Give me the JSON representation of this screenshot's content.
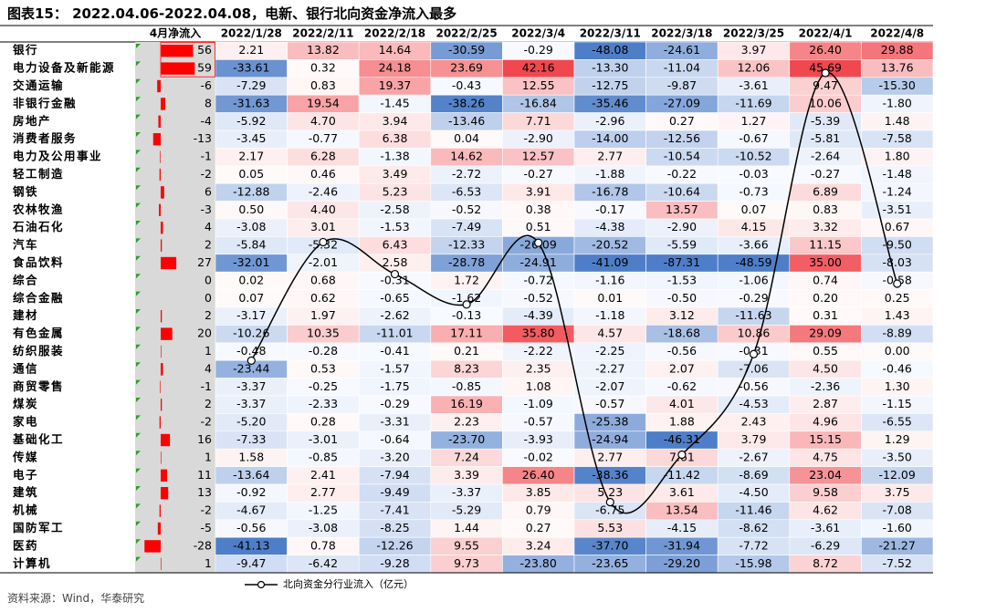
{
  "title": "图表15： 2022.04.06-2022.04.08，电新、银行北向资金净流入最多",
  "source": "资料来源：Wind，华泰研究",
  "colors": {
    "positive": "#f04a4f",
    "negative": "#4f7fc8",
    "bar": "#ff0000",
    "highlight_border": "#ff3030"
  },
  "chart_data": {
    "type": "table",
    "april_header": "4月净流入",
    "dates": [
      "2022/1/28",
      "2022/2/11",
      "2022/2/18",
      "2022/2/25",
      "2022/3/4",
      "2022/3/11",
      "2022/3/18",
      "2022/3/25",
      "2022/4/1",
      "2022/4/8"
    ],
    "sectors": [
      {
        "name": "银行",
        "april": 56,
        "values": [
          2.21,
          13.82,
          14.64,
          -30.59,
          -0.29,
          -48.08,
          -24.61,
          3.97,
          26.4,
          29.88
        ]
      },
      {
        "name": "电力设备及新能源",
        "april": 59,
        "values": [
          -33.61,
          0.32,
          24.18,
          23.69,
          42.16,
          -13.3,
          -11.04,
          12.06,
          45.69,
          13.76
        ]
      },
      {
        "name": "交通运输",
        "april": -6,
        "values": [
          -7.29,
          0.83,
          19.37,
          -0.43,
          12.55,
          -12.75,
          -9.87,
          -3.61,
          9.47,
          -15.3
        ]
      },
      {
        "name": "非银行金融",
        "april": 8,
        "values": [
          -31.63,
          19.54,
          -1.45,
          -38.26,
          -16.84,
          -35.46,
          -27.09,
          -11.69,
          10.06,
          -1.8
        ]
      },
      {
        "name": "房地产",
        "april": -4,
        "values": [
          -5.92,
          4.7,
          3.94,
          -13.46,
          7.71,
          -2.96,
          0.27,
          1.27,
          -5.39,
          1.48
        ]
      },
      {
        "name": "消费者服务",
        "april": -13,
        "values": [
          -3.45,
          -0.77,
          6.38,
          0.04,
          -2.9,
          -14.0,
          -12.56,
          -0.67,
          -5.81,
          -7.58
        ]
      },
      {
        "name": "电力及公用事业",
        "april": -1,
        "values": [
          2.17,
          6.28,
          -1.38,
          14.62,
          12.57,
          2.77,
          -10.54,
          -10.52,
          -2.64,
          1.8
        ]
      },
      {
        "name": "轻工制造",
        "april": -2,
        "values": [
          0.05,
          0.46,
          3.49,
          -2.72,
          -0.27,
          -1.88,
          -0.22,
          -0.03,
          -0.27,
          -1.48
        ]
      },
      {
        "name": "钢铁",
        "april": 6,
        "values": [
          -12.88,
          -2.46,
          5.23,
          -6.53,
          3.91,
          -16.78,
          -10.64,
          -0.73,
          6.89,
          -1.24
        ]
      },
      {
        "name": "农林牧渔",
        "april": -3,
        "values": [
          0.5,
          4.4,
          -2.58,
          -0.52,
          0.38,
          -0.17,
          13.57,
          0.07,
          0.83,
          -3.51
        ]
      },
      {
        "name": "石油石化",
        "april": 4,
        "values": [
          -3.08,
          3.01,
          -1.53,
          -7.49,
          0.51,
          -4.38,
          -2.9,
          4.15,
          3.32,
          0.67
        ]
      },
      {
        "name": "汽车",
        "april": 2,
        "values": [
          -5.84,
          -5.32,
          6.43,
          -12.33,
          -26.09,
          -20.52,
          -5.59,
          -3.66,
          11.15,
          -9.5
        ]
      },
      {
        "name": "食品饮料",
        "april": 27,
        "values": [
          -32.01,
          -2.01,
          2.58,
          -28.78,
          -24.91,
          -41.09,
          -87.31,
          -48.59,
          35.0,
          -8.03
        ]
      },
      {
        "name": "综合",
        "april": 0,
        "values": [
          0.02,
          0.68,
          -0.31,
          1.72,
          -0.72,
          -1.16,
          -1.53,
          -1.06,
          0.74,
          -0.58
        ]
      },
      {
        "name": "综合金融",
        "april": 0,
        "values": [
          0.07,
          0.62,
          -0.65,
          -1.62,
          -0.52,
          0.01,
          -0.5,
          -0.29,
          0.2,
          0.25
        ]
      },
      {
        "name": "建材",
        "april": 2,
        "values": [
          -3.17,
          1.97,
          -2.62,
          -0.13,
          -4.39,
          -1.18,
          3.12,
          -11.63,
          0.31,
          1.43
        ]
      },
      {
        "name": "有色金属",
        "april": 20,
        "values": [
          -10.26,
          10.35,
          -11.01,
          17.11,
          35.8,
          4.57,
          -18.68,
          10.86,
          29.09,
          -8.89
        ]
      },
      {
        "name": "纺织服装",
        "april": 1,
        "values": [
          -0.48,
          -0.28,
          -0.41,
          0.21,
          -2.22,
          -2.25,
          -0.56,
          -0.31,
          0.55,
          0.0
        ]
      },
      {
        "name": "通信",
        "april": 4,
        "values": [
          -23.44,
          0.53,
          -1.57,
          8.23,
          2.35,
          -2.27,
          2.07,
          -7.06,
          4.5,
          -0.46
        ]
      },
      {
        "name": "商贸零售",
        "april": -1,
        "values": [
          -3.37,
          -0.25,
          -1.75,
          -0.85,
          1.08,
          -2.07,
          -0.62,
          -0.56,
          -2.36,
          1.3
        ]
      },
      {
        "name": "煤炭",
        "april": 2,
        "values": [
          -3.37,
          -2.33,
          -0.29,
          16.19,
          -1.09,
          -0.57,
          4.01,
          -4.53,
          2.87,
          -1.15
        ]
      },
      {
        "name": "家电",
        "april": -2,
        "values": [
          -5.2,
          0.28,
          -3.31,
          2.23,
          -0.57,
          -25.38,
          1.88,
          2.43,
          4.96,
          -6.55
        ]
      },
      {
        "name": "基础化工",
        "april": 16,
        "values": [
          -7.33,
          -3.01,
          -0.64,
          -23.7,
          -3.93,
          -24.94,
          -46.31,
          3.79,
          15.15,
          1.29
        ]
      },
      {
        "name": "传媒",
        "april": 1,
        "values": [
          1.58,
          -0.85,
          -3.2,
          7.24,
          -0.02,
          2.77,
          7.61,
          -2.67,
          4.75,
          -3.5
        ]
      },
      {
        "name": "电子",
        "april": 11,
        "values": [
          -13.64,
          2.41,
          -7.94,
          3.39,
          26.4,
          -38.36,
          -11.42,
          -8.69,
          23.04,
          -12.09
        ]
      },
      {
        "name": "建筑",
        "april": 13,
        "values": [
          -0.92,
          2.77,
          -9.49,
          -3.37,
          3.85,
          5.23,
          3.61,
          -4.5,
          9.58,
          3.75
        ]
      },
      {
        "name": "机械",
        "april": -2,
        "values": [
          -4.67,
          -1.25,
          -7.41,
          -5.29,
          0.79,
          -6.75,
          13.54,
          -11.46,
          4.62,
          -7.08
        ]
      },
      {
        "name": "国防军工",
        "april": -5,
        "values": [
          -0.56,
          -3.08,
          -8.25,
          1.44,
          0.27,
          5.53,
          -4.15,
          -8.62,
          -3.61,
          -1.6
        ]
      },
      {
        "name": "医药",
        "april": -28,
        "values": [
          -41.13,
          0.78,
          -12.26,
          9.55,
          3.24,
          -37.7,
          -31.94,
          -7.72,
          -6.29,
          -21.27
        ]
      },
      {
        "name": "计算机",
        "april": 1,
        "values": [
          -9.47,
          -6.42,
          -9.28,
          9.73,
          -23.8,
          -23.65,
          -29.2,
          -15.98,
          8.72,
          -7.52
        ]
      }
    ],
    "line_series": {
      "name": "北向资金分行业流入（亿元）",
      "values": [
        -160.02,
        20.52,
        -28.26,
        -74.48,
        19.51,
        -375.63,
        -303.37,
        -150.18,
        278.26,
        -42.82
      ],
      "ylim": [
        -400,
        320
      ]
    }
  }
}
